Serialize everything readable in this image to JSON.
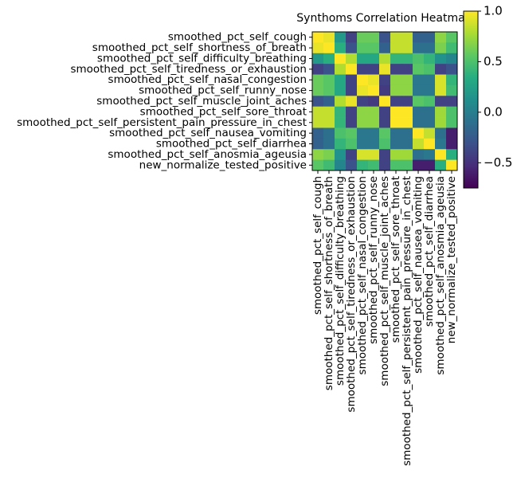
{
  "chart_data": {
    "type": "heatmap",
    "title": "Synthoms Correlation Heatma",
    "labels": [
      "smoothed_pct_self_cough",
      "smoothed_pct_self_shortness_of_breath",
      "smoothed_pct_self_difficulty_breathing",
      "smoothed_pct_self_tiredness_or_exhaustion",
      "smoothed_pct_self_nasal_congestion",
      "smoothed_pct_self_runny_nose",
      "smoothed_pct_self_muscle_joint_aches",
      "smoothed_pct_self_sore_throat",
      "smoothed_pct_self_persistent_pain_pressure_in_chest",
      "smoothed_pct_self_nausea_vomiting",
      "smoothed_pct_self_diarrhea",
      "smoothed_pct_self_anosmia_ageusia",
      "new_normalize_tested_positive"
    ],
    "values": [
      [
        1.0,
        0.95,
        0.2,
        -0.4,
        0.6,
        0.6,
        -0.3,
        0.85,
        0.85,
        -0.2,
        -0.2,
        0.7,
        0.55
      ],
      [
        0.95,
        1.0,
        0.35,
        -0.3,
        0.55,
        0.55,
        -0.2,
        0.85,
        0.85,
        -0.1,
        -0.1,
        0.65,
        0.45
      ],
      [
        0.2,
        0.35,
        1.0,
        0.8,
        0.3,
        0.3,
        0.8,
        0.4,
        0.4,
        0.5,
        0.4,
        0.15,
        0.05
      ],
      [
        -0.4,
        -0.3,
        0.8,
        1.0,
        -0.4,
        -0.4,
        0.95,
        -0.4,
        -0.4,
        0.55,
        0.5,
        -0.4,
        -0.3
      ],
      [
        0.6,
        0.55,
        0.3,
        -0.4,
        1.0,
        0.95,
        -0.4,
        0.7,
        0.7,
        -0.05,
        -0.05,
        0.9,
        0.4
      ],
      [
        0.6,
        0.55,
        0.3,
        -0.4,
        0.95,
        1.0,
        -0.45,
        0.7,
        0.7,
        -0.05,
        -0.05,
        0.9,
        0.45
      ],
      [
        -0.3,
        -0.2,
        0.8,
        0.95,
        -0.4,
        -0.45,
        1.0,
        -0.4,
        -0.4,
        0.55,
        0.5,
        -0.4,
        -0.4
      ],
      [
        0.85,
        0.85,
        0.4,
        -0.4,
        0.7,
        0.7,
        -0.4,
        1.0,
        1.0,
        -0.1,
        -0.1,
        0.75,
        0.5
      ],
      [
        0.85,
        0.85,
        0.4,
        -0.4,
        0.7,
        0.7,
        -0.4,
        1.0,
        1.0,
        -0.1,
        -0.1,
        0.75,
        0.5
      ],
      [
        -0.2,
        -0.1,
        0.5,
        0.55,
        -0.05,
        -0.05,
        0.55,
        -0.1,
        -0.1,
        1.0,
        0.85,
        -0.1,
        -0.6
      ],
      [
        -0.2,
        -0.1,
        0.4,
        0.5,
        -0.05,
        -0.05,
        0.5,
        -0.1,
        -0.1,
        0.85,
        1.0,
        -0.05,
        -0.6
      ],
      [
        0.7,
        0.65,
        0.15,
        -0.4,
        0.9,
        0.9,
        -0.4,
        0.75,
        0.75,
        -0.1,
        -0.05,
        1.0,
        0.35
      ],
      [
        0.55,
        0.45,
        0.05,
        -0.3,
        0.4,
        0.45,
        -0.4,
        0.5,
        0.5,
        -0.6,
        -0.6,
        0.35,
        1.0
      ]
    ],
    "colorbar": {
      "min": -0.75,
      "max": 1.0,
      "ticks": [
        -0.5,
        0.0,
        0.5,
        1.0
      ],
      "tick_labels": [
        "−0.5",
        "0.0",
        "0.5",
        "1.0"
      ],
      "colormap": "viridis"
    },
    "grid": false
  }
}
